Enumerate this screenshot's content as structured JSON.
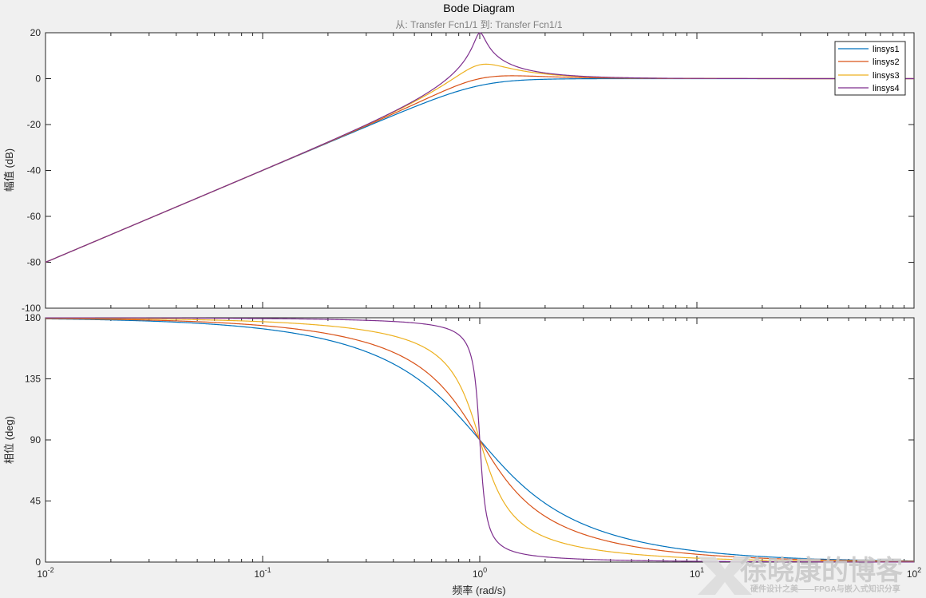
{
  "chart_data": {
    "type": "line",
    "title": "Bode Diagram",
    "subtitle": "从: Transfer Fcn1/1  到: Transfer Fcn1/1",
    "xlabel": "频率  (rad/s)",
    "xscale": "log",
    "xlim": [
      0.01,
      100
    ],
    "x_ticks": [
      {
        "base": "10",
        "exp": "-2"
      },
      {
        "base": "10",
        "exp": "-1"
      },
      {
        "base": "10",
        "exp": "0"
      },
      {
        "base": "10",
        "exp": "1"
      },
      {
        "base": "10",
        "exp": "2"
      }
    ],
    "legend_position": "top-right",
    "grid": false,
    "series": [
      {
        "name": "linsys1",
        "color": "#0072bd",
        "zeta": 0.7071
      },
      {
        "name": "linsys2",
        "color": "#d95319",
        "zeta": 0.5
      },
      {
        "name": "linsys3",
        "color": "#edb120",
        "zeta": 0.25
      },
      {
        "name": "linsys4",
        "color": "#7e2f8e",
        "zeta": 0.05
      }
    ],
    "sample_x": [
      0.01,
      0.1,
      0.5,
      1,
      2,
      10,
      100
    ],
    "panels": [
      {
        "ylabel": "幅值 (dB)",
        "ylim": [
          -100,
          20
        ],
        "yticks": [
          20,
          0,
          -20,
          -40,
          -60,
          -80,
          -100
        ],
        "sample_y": {
          "linsys1": [
            -80,
            -40,
            -12.3,
            -6.0,
            -0.97,
            0,
            0
          ],
          "linsys2": [
            -80,
            -40,
            -11.3,
            -3.0,
            0.5,
            0.09,
            0
          ],
          "linsys3": [
            -80,
            -40,
            -9.9,
            6.0,
            1.7,
            0.09,
            0
          ],
          "linsys4": [
            -80,
            -40,
            -9.5,
            20.0,
            2.5,
            0.09,
            0
          ]
        }
      },
      {
        "ylabel": "相位 (deg)",
        "ylim": [
          0,
          180
        ],
        "yticks": [
          180,
          135,
          90,
          45,
          0
        ],
        "sample_y": {
          "linsys1": [
            179.2,
            171.9,
            136.7,
            90,
            43.3,
            8.1,
            0.8
          ],
          "linsys2": [
            179.4,
            174.2,
            146.3,
            90,
            33.7,
            5.8,
            0.6
          ],
          "linsys3": [
            179.7,
            177.1,
            161.6,
            90,
            18.4,
            2.9,
            0.3
          ],
          "linsys4": [
            179.9,
            179.4,
            176.2,
            90,
            3.8,
            0.6,
            0.06
          ]
        }
      }
    ]
  },
  "watermark": {
    "main": "徐晓康的博客",
    "sub": "硬件设计之美——FPGA与嵌入式知识分享"
  }
}
